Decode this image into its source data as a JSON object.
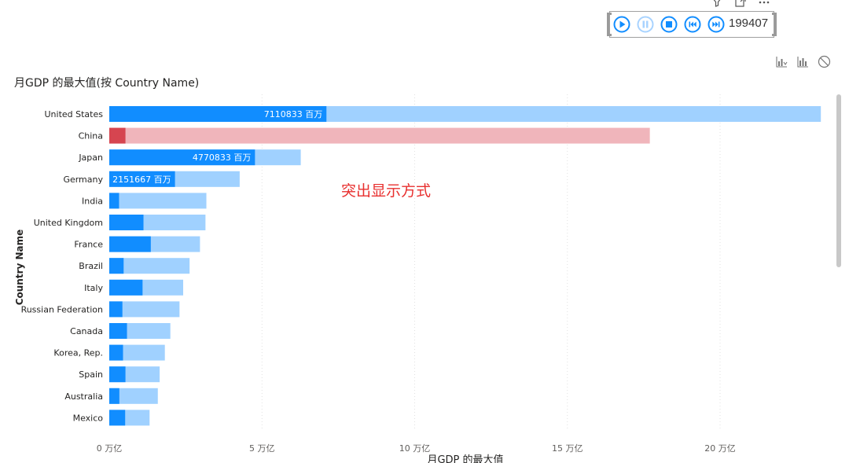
{
  "header": {
    "icons": [
      "filter-icon",
      "focus-mode-icon",
      "more-options-icon"
    ]
  },
  "player": {
    "buttons": [
      "play-icon",
      "pause-icon",
      "stop-icon",
      "previous-icon",
      "next-icon"
    ],
    "value": "199407"
  },
  "visual_header": {
    "icons": [
      "drill-icon",
      "bar-chart-icon",
      "no-icon"
    ]
  },
  "annotation": "突出显示方式",
  "colors": {
    "highlight": "#118DFF",
    "base": "#A0D1FF",
    "selected_highlight": "#D64550",
    "selected_base": "#F0B5BB"
  },
  "chart_data": {
    "type": "bar",
    "orientation": "horizontal",
    "title": "月GDP 的最大值(按 Country Name)",
    "xlabel": "月GDP 的最大值",
    "ylabel": "Country Name",
    "xlim": [
      0,
      235000
    ],
    "x_unit": "万亿",
    "ticks": [
      {
        "value": 0,
        "label": "0 万亿"
      },
      {
        "value": 50000,
        "label": "5 万亿"
      },
      {
        "value": 100000,
        "label": "10 万亿"
      },
      {
        "value": 150000,
        "label": "15 万亿"
      },
      {
        "value": 200000,
        "label": "20 万亿"
      }
    ],
    "grid": true,
    "categories": [
      "United States",
      "China",
      "Japan",
      "Germany",
      "India",
      "United Kingdom",
      "France",
      "Brazil",
      "Italy",
      "Russian Federation",
      "Canada",
      "Korea, Rep.",
      "Spain",
      "Australia",
      "Mexico"
    ],
    "series": [
      {
        "name": "月GDP 的最大值",
        "values": [
          233000,
          177000,
          62700,
          42700,
          31800,
          31500,
          29700,
          26300,
          24200,
          23000,
          20000,
          18200,
          16500,
          15900,
          13200
        ]
      },
      {
        "name": "199407",
        "values": [
          71108.33,
          5300,
          47708.33,
          21516.67,
          3200,
          11200,
          13600,
          4700,
          10900,
          4300,
          5800,
          4500,
          5300,
          3300,
          5200
        ]
      }
    ],
    "data_labels": [
      "7110833 百万",
      "",
      "4770833 百万",
      "2151667 百万",
      "",
      "",
      "",
      "",
      "",
      "",
      "",
      "",
      "",
      "",
      ""
    ],
    "selected_category": "China"
  }
}
